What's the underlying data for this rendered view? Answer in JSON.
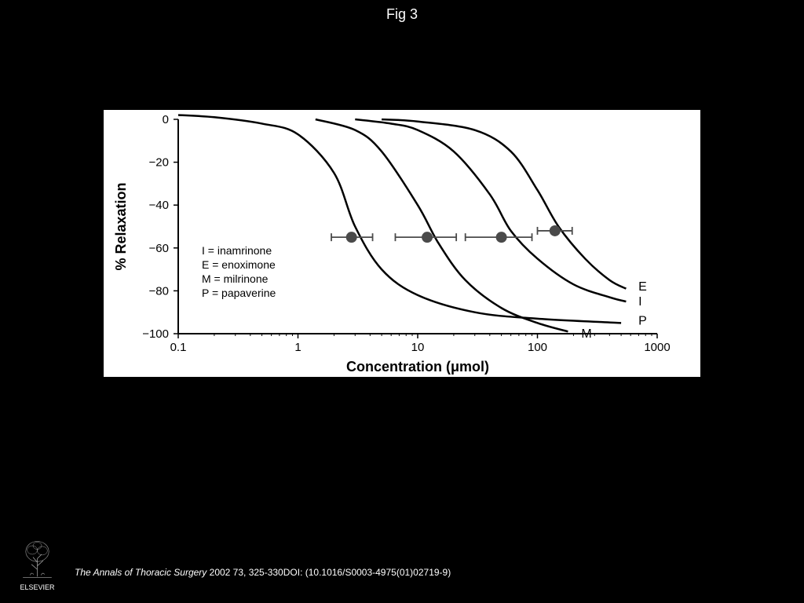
{
  "title": "Fig 3",
  "citation": {
    "journal": "The Annals of Thoracic Surgery",
    "details": " 2002 73, 325-330DOI: (10.1016/S0003-4975(01)02719-9)"
  },
  "publisher": "ELSEVIER",
  "chart": {
    "type": "line",
    "background_color": "#ffffff",
    "line_color": "#000000",
    "line_width": 2.5,
    "marker_color": "#4a4a4a",
    "marker_radius": 7,
    "axis_color": "#000000",
    "text_color": "#000000",
    "x_axis": {
      "label": "Concentration (μmol)",
      "scale": "log",
      "min": 0.1,
      "max": 1000,
      "ticks": [
        0.1,
        1,
        10,
        100,
        1000
      ],
      "tick_labels": [
        "0.1",
        "1",
        "10",
        "100",
        "1000"
      ],
      "label_fontsize": 18,
      "tick_fontsize": 15
    },
    "y_axis": {
      "label": "% Relaxation",
      "scale": "linear",
      "min": -100,
      "max": 0,
      "ticks": [
        0,
        -20,
        -40,
        -60,
        -80,
        -100
      ],
      "tick_labels": [
        "0",
        "−20",
        "−40",
        "−60",
        "−80",
        "−100"
      ],
      "label_fontsize": 18,
      "tick_fontsize": 15
    },
    "legend_items": [
      {
        "code": "I",
        "name": "inamrinone"
      },
      {
        "code": "E",
        "name": "enoximone"
      },
      {
        "code": "M",
        "name": "milrinone"
      },
      {
        "code": "P",
        "name": "papaverine"
      }
    ],
    "legend_fontsize": 14,
    "series": [
      {
        "label": "P",
        "end_label_x": 600,
        "end_label_y": -94,
        "points": [
          {
            "x": 0.1,
            "y": 2
          },
          {
            "x": 0.2,
            "y": 1
          },
          {
            "x": 0.5,
            "y": -2
          },
          {
            "x": 1,
            "y": -7
          },
          {
            "x": 2,
            "y": -25
          },
          {
            "x": 3,
            "y": -50
          },
          {
            "x": 5,
            "y": -70
          },
          {
            "x": 10,
            "y": -82
          },
          {
            "x": 30,
            "y": -90
          },
          {
            "x": 100,
            "y": -93
          },
          {
            "x": 500,
            "y": -95
          }
        ]
      },
      {
        "label": "M",
        "end_label_x": 200,
        "end_label_y": -100,
        "points": [
          {
            "x": 1.4,
            "y": 0
          },
          {
            "x": 3,
            "y": -5
          },
          {
            "x": 5,
            "y": -15
          },
          {
            "x": 10,
            "y": -40
          },
          {
            "x": 15,
            "y": -58
          },
          {
            "x": 25,
            "y": -75
          },
          {
            "x": 50,
            "y": -88
          },
          {
            "x": 100,
            "y": -95
          },
          {
            "x": 180,
            "y": -99
          }
        ]
      },
      {
        "label": "I",
        "end_label_x": 600,
        "end_label_y": -85,
        "points": [
          {
            "x": 3,
            "y": 0
          },
          {
            "x": 6,
            "y": -2
          },
          {
            "x": 10,
            "y": -5
          },
          {
            "x": 20,
            "y": -15
          },
          {
            "x": 40,
            "y": -35
          },
          {
            "x": 60,
            "y": -52
          },
          {
            "x": 100,
            "y": -65
          },
          {
            "x": 200,
            "y": -77
          },
          {
            "x": 400,
            "y": -83
          },
          {
            "x": 550,
            "y": -85
          }
        ]
      },
      {
        "label": "E",
        "end_label_x": 600,
        "end_label_y": -78,
        "points": [
          {
            "x": 5,
            "y": 0
          },
          {
            "x": 10,
            "y": -1
          },
          {
            "x": 30,
            "y": -5
          },
          {
            "x": 60,
            "y": -15
          },
          {
            "x": 100,
            "y": -33
          },
          {
            "x": 150,
            "y": -50
          },
          {
            "x": 250,
            "y": -65
          },
          {
            "x": 400,
            "y": -75
          },
          {
            "x": 550,
            "y": -79
          }
        ]
      }
    ],
    "markers": [
      {
        "x": 2.8,
        "y": -55,
        "err_low": 1.9,
        "err_high": 4.2
      },
      {
        "x": 12,
        "y": -55,
        "err_low": 6.5,
        "err_high": 21
      },
      {
        "x": 50,
        "y": -55,
        "err_low": 25,
        "err_high": 90
      },
      {
        "x": 140,
        "y": -52,
        "err_low": 100,
        "err_high": 195
      }
    ]
  }
}
